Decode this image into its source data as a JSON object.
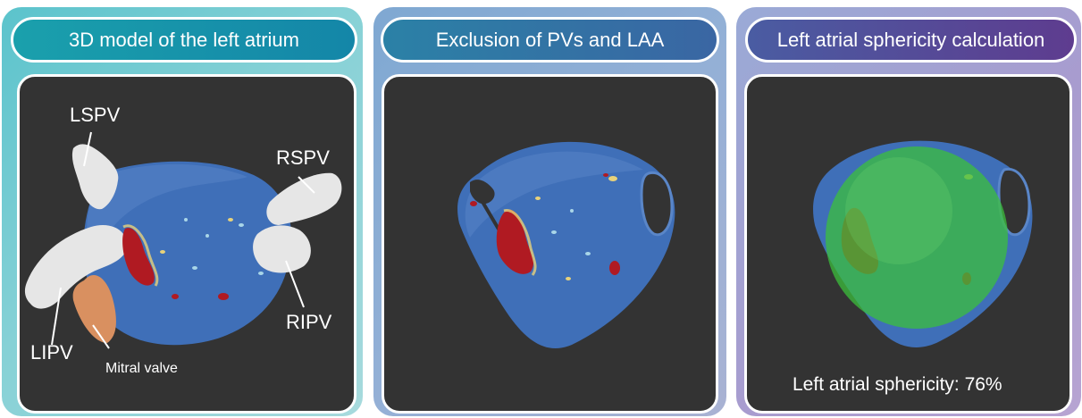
{
  "panels": [
    {
      "title": "3D model of the left atrium",
      "labels": {
        "lspv": "LSPV",
        "rspv": "RSPV",
        "ripv": "RIPV",
        "lipv": "LIPV",
        "mitral": "Mitral valve"
      }
    },
    {
      "title": "Exclusion of PVs and LAA"
    },
    {
      "title": "Left atrial sphericity calculation",
      "caption": "Left atrial sphericity: 76%"
    }
  ],
  "colors": {
    "atrium": "#3f6fb8",
    "veins": "#e6e6e6",
    "mitral": "#d99060",
    "scar": "#b01a22",
    "sphere": "#3cbf3c",
    "background": "#333333"
  }
}
